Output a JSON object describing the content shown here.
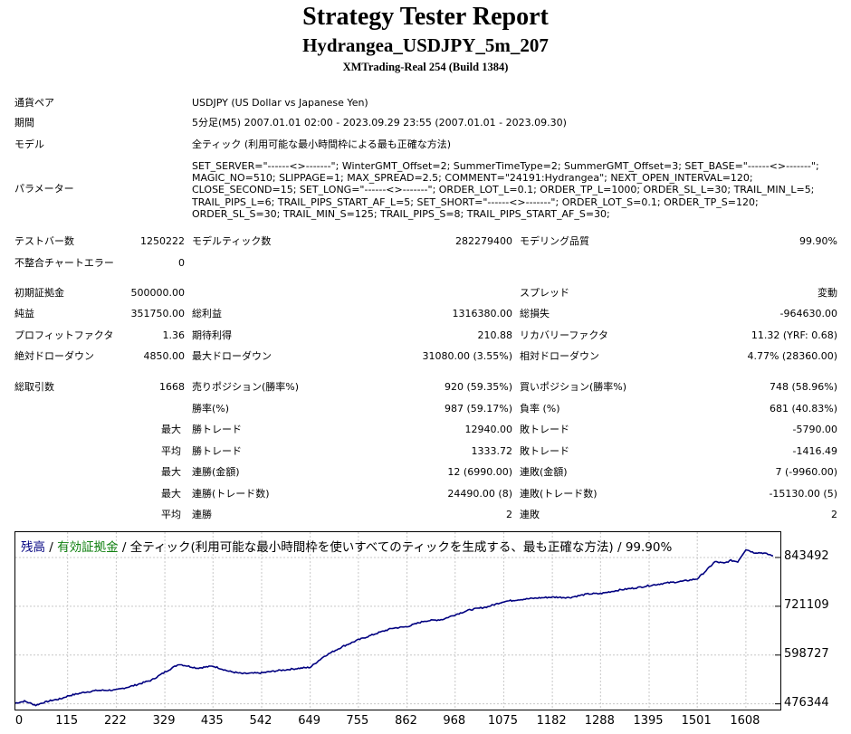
{
  "header": {
    "title": "Strategy Tester Report",
    "ea_name": "Hydrangea_USDJPY_5m_207",
    "server": "XMTrading-Real 254 (Build 1384)"
  },
  "info": {
    "symbol_label": "通貨ペア",
    "symbol_value": "USDJPY (US Dollar vs Japanese Yen)",
    "period_label": "期間",
    "period_value": "5分足(M5) 2007.01.01 02:00 - 2023.09.29 23:55 (2007.01.01 - 2023.09.30)",
    "model_label": "モデル",
    "model_value": "全ティック (利用可能な最小時間枠による最も正確な方法)",
    "params_label": "パラメーター",
    "params_value": "SET_SERVER=\"------<>-------\"; WinterGMT_Offset=2; SummerTimeType=2; SummerGMT_Offset=3; SET_BASE=\"------<>-------\"; MAGIC_NO=510; SLIPPAGE=1; MAX_SPREAD=2.5; COMMENT=\"24191:Hydrangea\"; NEXT_OPEN_INTERVAL=120; CLOSE_SECOND=15; SET_LONG=\"------<>-------\"; ORDER_LOT_L=0.1; ORDER_TP_L=1000; ORDER_SL_L=30; TRAIL_MIN_L=5; TRAIL_PIPS_L=6; TRAIL_PIPS_START_AF_L=5; SET_SHORT=\"------<>-------\"; ORDER_LOT_S=0.1; ORDER_TP_S=120; ORDER_SL_S=30; TRAIL_MIN_S=125; TRAIL_PIPS_S=8; TRAIL_PIPS_START_AF_S=30;"
  },
  "bars": {
    "bars_label": "テストバー数",
    "bars_value": "1250222",
    "ticks_label": "モデルティック数",
    "ticks_value": "282279400",
    "quality_label": "モデリング品質",
    "quality_value": "99.90%",
    "mismatch_label": "不整合チャートエラー",
    "mismatch_value": "0"
  },
  "stats": {
    "deposit_label": "初期証拠金",
    "deposit_value": "500000.00",
    "spread_label": "スプレッド",
    "spread_value": "変動",
    "net_label": "純益",
    "net_value": "351750.00",
    "gross_profit_label": "総利益",
    "gross_profit_value": "1316380.00",
    "gross_loss_label": "総損失",
    "gross_loss_value": "-964630.00",
    "pf_label": "プロフィットファクタ",
    "pf_value": "1.36",
    "expected_label": "期待利得",
    "expected_value": "210.88",
    "recovery_label": "リカバリーファクタ",
    "recovery_value": "11.32 (YRF: 0.68)",
    "abs_dd_label": "絶対ドローダウン",
    "abs_dd_value": "4850.00",
    "max_dd_label": "最大ドローダウン",
    "max_dd_value": "31080.00 (3.55%)",
    "rel_dd_label": "相対ドローダウン",
    "rel_dd_value": "4.77% (28360.00)"
  },
  "trades": {
    "total_label": "総取引数",
    "total_value": "1668",
    "short_label": "売りポジション(勝率%)",
    "short_value": "920 (59.35%)",
    "long_label": "買いポジション(勝率%)",
    "long_value": "748 (58.96%)",
    "win_rate_label": "勝率(%)",
    "win_rate_value": "987 (59.17%)",
    "loss_rate_label": "負率 (%)",
    "loss_rate_value": "681 (40.83%)",
    "rows": [
      {
        "prefix": "最大",
        "left_label": "勝トレード",
        "left_value": "12940.00",
        "right_label": "敗トレード",
        "right_value": "-5790.00"
      },
      {
        "prefix": "平均",
        "left_label": "勝トレード",
        "left_value": "1333.72",
        "right_label": "敗トレード",
        "right_value": "-1416.49"
      },
      {
        "prefix": "最大",
        "left_label": "連勝(金額)",
        "left_value": "12 (6990.00)",
        "right_label": "連敗(金額)",
        "right_value": "7 (-9960.00)"
      },
      {
        "prefix": "最大",
        "left_label": "連勝(トレード数)",
        "left_value": "24490.00 (8)",
        "right_label": "連敗(トレード数)",
        "right_value": "-15130.00 (5)"
      },
      {
        "prefix": "平均",
        "left_label": "連勝",
        "left_value": "2",
        "right_label": "連敗",
        "right_value": "2"
      }
    ]
  },
  "chart_legend": {
    "balance": "残高",
    "sep1": " / ",
    "equity": "有効証拠金",
    "rest": " / 全ティック(利用可能な最小時間枠を使いすべてのティックを生成する、最も正確な方法) / 99.90%"
  },
  "colors": {
    "balance_line": "#000080",
    "equity_text": "#108010",
    "grid": "#c8c8c8"
  },
  "chart_data": {
    "type": "line",
    "title": "",
    "xlabel": "",
    "ylabel": "",
    "x_ticks": [
      "0",
      "115",
      "222",
      "329",
      "435",
      "542",
      "649",
      "755",
      "862",
      "968",
      "1075",
      "1182",
      "1288",
      "1395",
      "1501",
      "1608"
    ],
    "y_ticks": [
      "843492",
      "721109",
      "598727",
      "476344"
    ],
    "xlim": [
      0,
      1668
    ],
    "ylim": [
      462000,
      907000
    ],
    "grid": true,
    "series": [
      {
        "name": "残高",
        "x": [
          0,
          20,
          45,
          60,
          80,
          100,
          115,
          150,
          180,
          222,
          260,
          300,
          329,
          360,
          400,
          435,
          470,
          500,
          542,
          580,
          620,
          649,
          680,
          720,
          755,
          800,
          830,
          862,
          900,
          940,
          968,
          1000,
          1040,
          1075,
          1110,
          1150,
          1182,
          1220,
          1260,
          1288,
          1330,
          1370,
          1395,
          1430,
          1470,
          1501,
          1520,
          1540,
          1560,
          1575,
          1590,
          1608,
          1625,
          1645,
          1668
        ],
        "y": [
          478000,
          483000,
          473000,
          479000,
          485000,
          489000,
          496000,
          505000,
          510000,
          511000,
          522000,
          536000,
          556000,
          576000,
          566000,
          571000,
          558000,
          552000,
          554000,
          560000,
          565000,
          568000,
          596000,
          620000,
          637000,
          655000,
          666000,
          670000,
          684000,
          688000,
          700000,
          712000,
          720000,
          733000,
          738000,
          742000,
          744000,
          743000,
          752000,
          753000,
          762000,
          768000,
          773000,
          779000,
          784000,
          790000,
          810000,
          833000,
          829000,
          836000,
          833000,
          864000,
          856000,
          855000,
          848000
        ]
      }
    ]
  }
}
